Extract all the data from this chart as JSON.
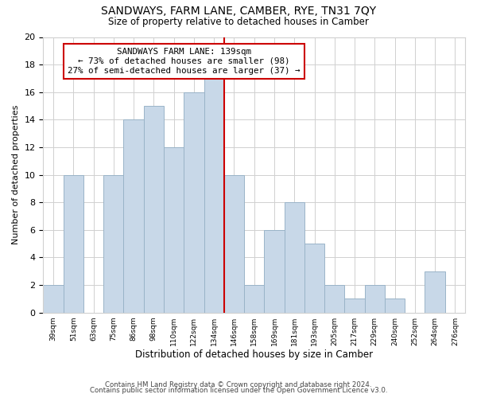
{
  "title": "SANDWAYS, FARM LANE, CAMBER, RYE, TN31 7QY",
  "subtitle": "Size of property relative to detached houses in Camber",
  "xlabel": "Distribution of detached houses by size in Camber",
  "ylabel": "Number of detached properties",
  "footer_line1": "Contains HM Land Registry data © Crown copyright and database right 2024.",
  "footer_line2": "Contains public sector information licensed under the Open Government Licence v3.0.",
  "bar_labels": [
    "39sqm",
    "51sqm",
    "63sqm",
    "75sqm",
    "86sqm",
    "98sqm",
    "110sqm",
    "122sqm",
    "134sqm",
    "146sqm",
    "158sqm",
    "169sqm",
    "181sqm",
    "193sqm",
    "205sqm",
    "217sqm",
    "229sqm",
    "240sqm",
    "252sqm",
    "264sqm",
    "276sqm"
  ],
  "bar_values": [
    2,
    10,
    0,
    10,
    14,
    15,
    12,
    16,
    17,
    10,
    2,
    6,
    8,
    5,
    2,
    1,
    2,
    1,
    0,
    3,
    0
  ],
  "bar_color": "#c8d8e8",
  "bar_edge_color": "#9ab4c8",
  "property_line_index": 8,
  "property_line_color": "#cc0000",
  "annotation_line1": "SANDWAYS FARM LANE: 139sqm",
  "annotation_line2": "← 73% of detached houses are smaller (98)",
  "annotation_line3": "27% of semi-detached houses are larger (37) →",
  "annotation_box_facecolor": "#ffffff",
  "annotation_box_edgecolor": "#cc0000",
  "ylim": [
    0,
    20
  ],
  "yticks": [
    0,
    2,
    4,
    6,
    8,
    10,
    12,
    14,
    16,
    18,
    20
  ],
  "background_color": "#ffffff",
  "grid_color": "#d0d0d0"
}
